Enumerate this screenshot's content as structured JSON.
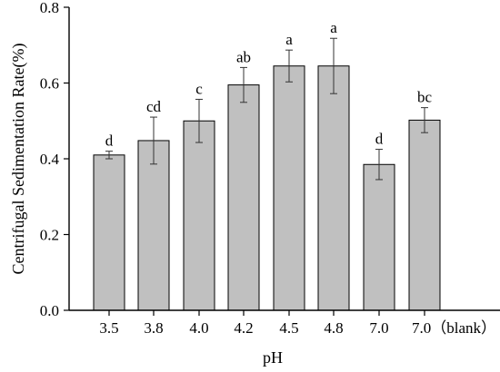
{
  "chart_data": {
    "type": "bar",
    "xlabel": "pH",
    "ylabel": "Centrifugal Sedimentation Rate(%)",
    "categories": [
      "3.5",
      "3.8",
      "4.0",
      "4.2",
      "4.5",
      "4.8",
      "7.0",
      "7.0（blank）"
    ],
    "values": [
      0.41,
      0.448,
      0.5,
      0.595,
      0.645,
      0.645,
      0.385,
      0.502
    ],
    "errors": [
      0.01,
      0.062,
      0.057,
      0.046,
      0.042,
      0.073,
      0.04,
      0.033
    ],
    "significance_labels": [
      "d",
      "cd",
      "c",
      "ab",
      "a",
      "a",
      "d",
      "bc"
    ],
    "ylim": [
      0,
      0.8
    ],
    "yticks": [
      "0.0",
      "0.2",
      "0.4",
      "0.6",
      "0.8"
    ],
    "bar_color": "#c0c0c0",
    "grid": false
  }
}
